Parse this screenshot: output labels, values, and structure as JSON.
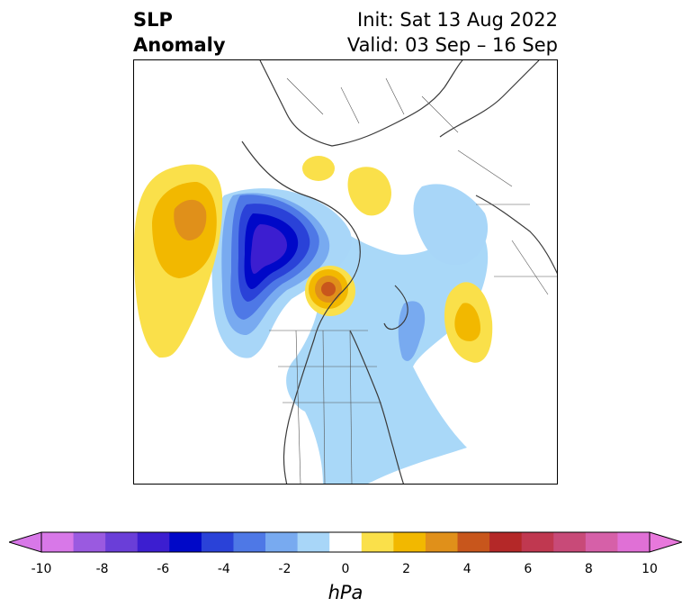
{
  "title": {
    "left_line1": "SLP",
    "left_line2": "Anomaly",
    "right_line1": "Init: Sat 13 Aug 2022",
    "right_line2": "Valid: 03 Sep – 16 Sep"
  },
  "map": {
    "projection": "north-polar-stereographic",
    "variable": "sea level pressure anomaly",
    "features": [
      {
        "name": "negative-anomaly-north-america",
        "min_value": -7,
        "color": "#0000cc"
      },
      {
        "name": "positive-anomaly-north-pacific",
        "max_value": 4,
        "color": "#e0901a"
      },
      {
        "name": "positive-anomaly-hudson-bay",
        "max_value": 5,
        "color": "#c8561c"
      },
      {
        "name": "positive-anomaly-north-atlantic",
        "max_value": 3,
        "color": "#f2b800"
      },
      {
        "name": "positive-anomaly-arctic-a",
        "max_value": 2,
        "color": "#fae04a"
      },
      {
        "name": "positive-anomaly-arctic-b",
        "max_value": 2,
        "color": "#fae04a"
      },
      {
        "name": "negative-anomaly-atlantic-us",
        "min_value": -2,
        "color": "#a9d8f8"
      }
    ]
  },
  "colorbar": {
    "label": "hPa",
    "ticks": [
      "-10",
      "-8",
      "-6",
      "-4",
      "-2",
      "0",
      "2",
      "4",
      "6",
      "8",
      "10"
    ],
    "levels": [
      -10,
      -9,
      -8,
      -7,
      -6,
      -5,
      -4,
      -3,
      -2,
      -1,
      1,
      2,
      3,
      4,
      5,
      6,
      7,
      8,
      9,
      10
    ],
    "colors": [
      "#d878e8",
      "#9a5ae0",
      "#6a3ed8",
      "#3c1ed0",
      "#0008c8",
      "#2a42d8",
      "#4e78e6",
      "#78aaf0",
      "#a8d6f8",
      "#ffffff",
      "#fae04a",
      "#f2b800",
      "#e0901a",
      "#c8561c",
      "#b42828",
      "#c03850",
      "#c84a78",
      "#d660a8",
      "#e070d6"
    ],
    "extend_low_color": "#d878e8",
    "extend_high_color": "#e878dc"
  }
}
